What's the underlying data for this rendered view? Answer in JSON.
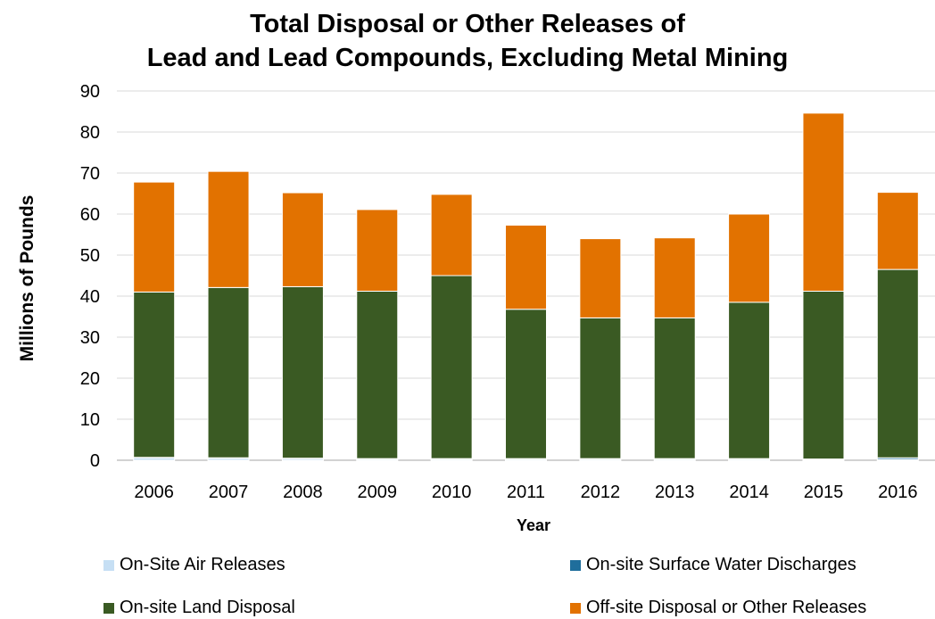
{
  "chart_data": {
    "type": "bar",
    "stacked": true,
    "title": "Total Disposal or Other Releases of\nLead and Lead Compounds, Excluding Metal Mining",
    "title_lines": [
      "Total Disposal or Other Releases of",
      "Lead and Lead Compounds, Excluding Metal Mining"
    ],
    "xlabel": "Year",
    "ylabel": "Millions of Pounds",
    "ylim": [
      0,
      90
    ],
    "yticks": [
      0,
      10,
      20,
      30,
      40,
      50,
      60,
      70,
      80,
      90
    ],
    "grid": true,
    "legend_position": "bottom",
    "categories": [
      "2006",
      "2007",
      "2008",
      "2009",
      "2010",
      "2011",
      "2012",
      "2013",
      "2014",
      "2015",
      "2016"
    ],
    "series": [
      {
        "name": "On-Site Air Releases",
        "color": "#c6dff4",
        "values": [
          0.6,
          0.5,
          0.4,
          0.3,
          0.3,
          0.3,
          0.3,
          0.3,
          0.3,
          0.2,
          0.2
        ]
      },
      {
        "name": "On-site Surface Water Discharges",
        "color": "#1f6e9c",
        "values": [
          0.1,
          0.1,
          0.1,
          0.1,
          0.1,
          0.1,
          0.1,
          0.1,
          0.1,
          0.1,
          0.4
        ]
      },
      {
        "name": "On-site Land Disposal",
        "color": "#3a5a23",
        "values": [
          40.3,
          41.5,
          41.8,
          40.8,
          44.6,
          36.4,
          34.3,
          34.3,
          38.1,
          40.9,
          45.9
        ]
      },
      {
        "name": "Off-site Disposal or Other Releases",
        "color": "#e27200",
        "values": [
          26.8,
          28.3,
          22.9,
          19.9,
          19.8,
          20.5,
          19.3,
          19.5,
          21.5,
          43.4,
          18.8
        ]
      }
    ]
  }
}
